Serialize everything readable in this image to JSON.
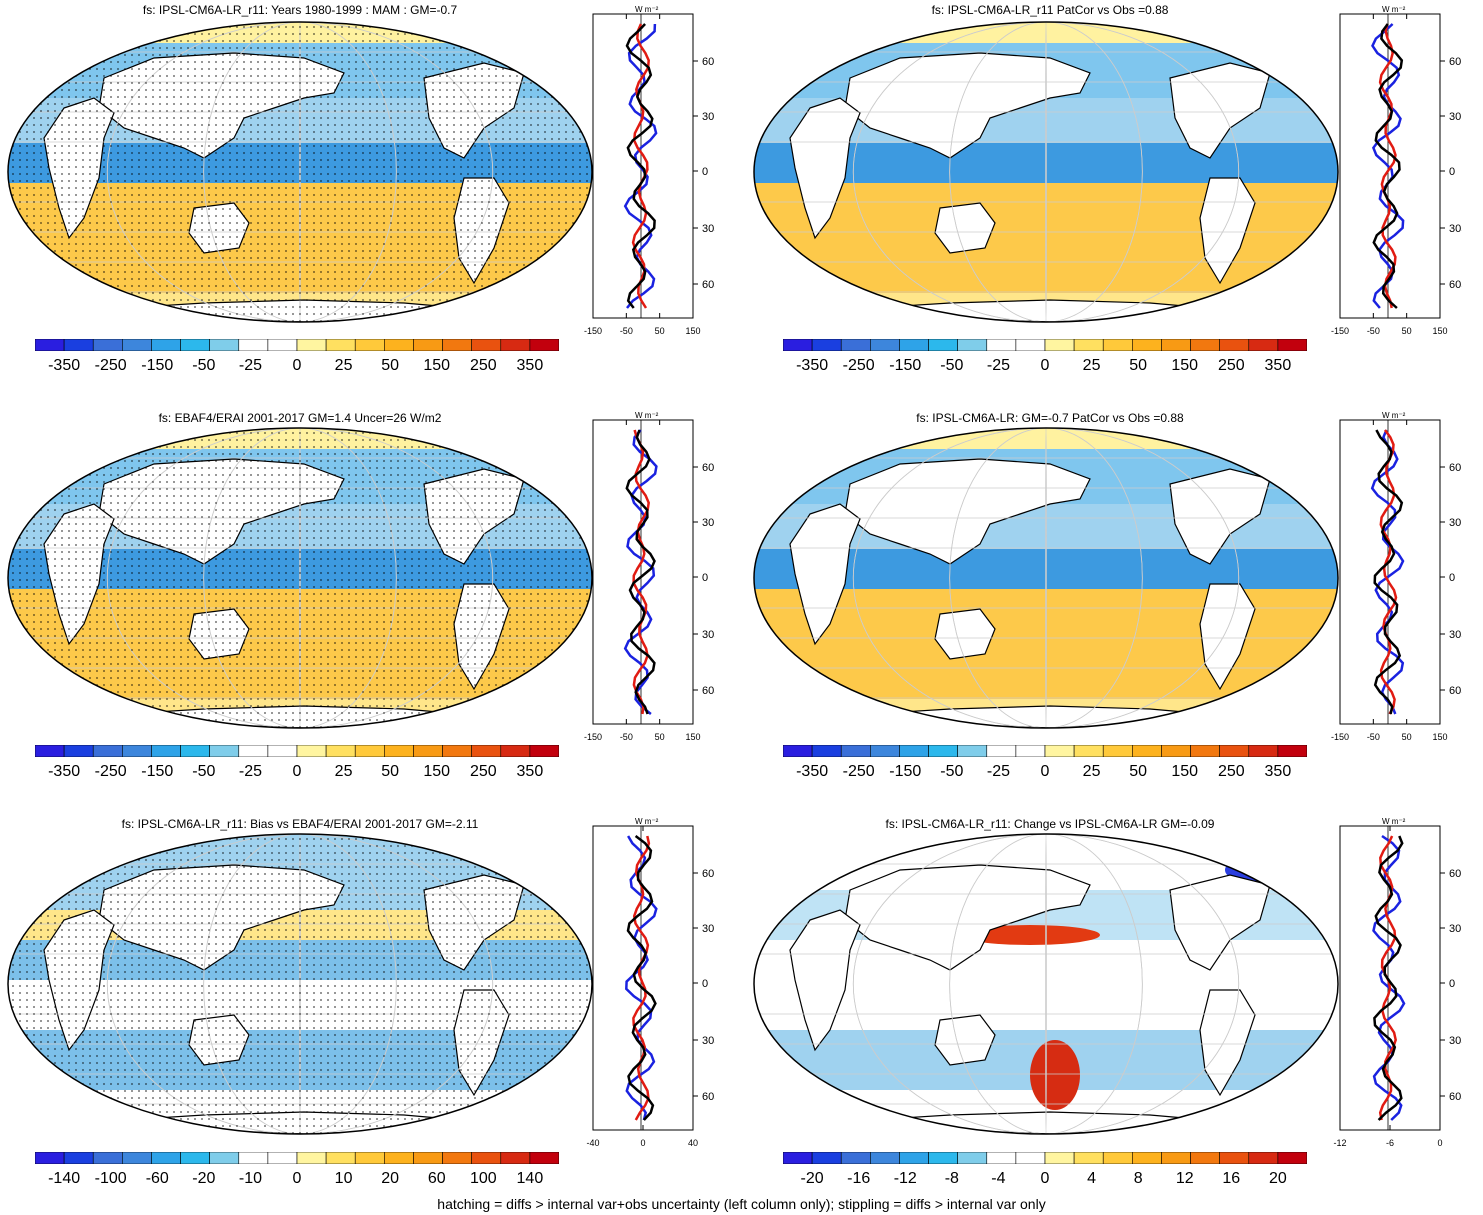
{
  "panels": [
    {
      "id": "p1",
      "title": "fs: IPSL-CM6A-LR_r11: Years 1980-1999 : MAM : GM=-0.7",
      "colorbar_labels": [
        "-350",
        "-250",
        "-150",
        "-50",
        "-25",
        "0",
        "25",
        "50",
        "150",
        "250",
        "350"
      ],
      "profile_ticks": [
        "-150",
        "-50",
        "50",
        "150"
      ],
      "stippled": true
    },
    {
      "id": "p2",
      "title": "fs: IPSL-CM6A-LR_r11 PatCor vs Obs =0.88",
      "colorbar_labels": [
        "-350",
        "-250",
        "-150",
        "-50",
        "-25",
        "0",
        "25",
        "50",
        "150",
        "250",
        "350"
      ],
      "profile_ticks": [
        "-150",
        "-50",
        "50",
        "150"
      ],
      "stippled": false
    },
    {
      "id": "p3",
      "title": "fs: EBAF4/ERAI 2001-2017 GM=1.4 Uncer=26 W/m2",
      "colorbar_labels": [
        "-350",
        "-250",
        "-150",
        "-50",
        "-25",
        "0",
        "25",
        "50",
        "150",
        "250",
        "350"
      ],
      "profile_ticks": [
        "-150",
        "-50",
        "50",
        "150"
      ],
      "stippled": true
    },
    {
      "id": "p4",
      "title": "fs: IPSL-CM6A-LR: GM=-0.7 PatCor vs Obs =0.88",
      "colorbar_labels": [
        "-350",
        "-250",
        "-150",
        "-50",
        "-25",
        "0",
        "25",
        "50",
        "150",
        "250",
        "350"
      ],
      "profile_ticks": [
        "-150",
        "-50",
        "50",
        "150"
      ],
      "stippled": false
    },
    {
      "id": "p5",
      "title": "fs: IPSL-CM6A-LR_r11: Bias vs EBAF4/ERAI 2001-2017 GM=-2.11",
      "colorbar_labels": [
        "-140",
        "-100",
        "-60",
        "-20",
        "-10",
        "0",
        "10",
        "20",
        "60",
        "100",
        "140"
      ],
      "profile_ticks": [
        "-40",
        "0",
        "40"
      ],
      "stippled": true
    },
    {
      "id": "p6",
      "title": "fs: IPSL-CM6A-LR_r11: Change vs IPSL-CM6A-LR GM=-0.09",
      "colorbar_labels": [
        "-20",
        "-16",
        "-12",
        "-8",
        "-4",
        "0",
        "4",
        "8",
        "12",
        "16",
        "20"
      ],
      "profile_ticks": [
        "-12",
        "-6",
        "0"
      ],
      "stippled": false
    }
  ],
  "profile_lat_labels": [
    "60N",
    "30N",
    "0",
    "30S",
    "60S"
  ],
  "profile_unit": "W m⁻²",
  "colorbar_colors": [
    "#2a1ee0",
    "#1a3fe0",
    "#3a6fd8",
    "#3d86dc",
    "#2ea3e8",
    "#2cb8ec",
    "#7fcdea",
    "#ffffff",
    "#ffffff",
    "#fff5a0",
    "#ffe060",
    "#ffc93a",
    "#fdb21e",
    "#f89a14",
    "#f2780f",
    "#e9520f",
    "#d72a12",
    "#c2000d"
  ],
  "footer": "hatching = diffs > internal var+obs uncertainty (left column only); stippling = diffs > internal var only"
}
